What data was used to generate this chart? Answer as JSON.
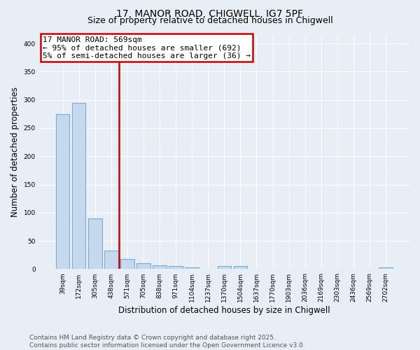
{
  "title": "17, MANOR ROAD, CHIGWELL, IG7 5PF",
  "subtitle": "Size of property relative to detached houses in Chigwell",
  "xlabel": "Distribution of detached houses by size in Chigwell",
  "ylabel": "Number of detached properties",
  "categories": [
    "39sqm",
    "172sqm",
    "305sqm",
    "438sqm",
    "571sqm",
    "705sqm",
    "838sqm",
    "971sqm",
    "1104sqm",
    "1237sqm",
    "1370sqm",
    "1504sqm",
    "1637sqm",
    "1770sqm",
    "1903sqm",
    "2036sqm",
    "2169sqm",
    "2303sqm",
    "2436sqm",
    "2569sqm",
    "2702sqm"
  ],
  "values": [
    275,
    295,
    90,
    33,
    18,
    10,
    7,
    5,
    3,
    0,
    5,
    5,
    0,
    0,
    0,
    0,
    0,
    0,
    0,
    0,
    3
  ],
  "bar_color": "#c5d8ee",
  "bar_edge_color": "#7aadd4",
  "vline_x_index": 3.5,
  "vline_color": "#cc0000",
  "annotation_line1": "17 MANOR ROAD: 569sqm",
  "annotation_line2": "← 95% of detached houses are smaller (692)",
  "annotation_line3": "5% of semi-detached houses are larger (36) →",
  "annotation_bg_color": "white",
  "ylim": [
    0,
    415
  ],
  "yticks": [
    0,
    50,
    100,
    150,
    200,
    250,
    300,
    350,
    400
  ],
  "footnote": "Contains HM Land Registry data © Crown copyright and database right 2025.\nContains public sector information licensed under the Open Government Licence v3.0.",
  "bg_color": "#e8eef5",
  "plot_bg_color": "#e8eef5",
  "grid_color": "#ffffff",
  "title_fontsize": 10,
  "subtitle_fontsize": 9,
  "axis_label_fontsize": 8.5,
  "tick_fontsize": 6.5,
  "annotation_fontsize": 8,
  "footnote_fontsize": 6.5
}
